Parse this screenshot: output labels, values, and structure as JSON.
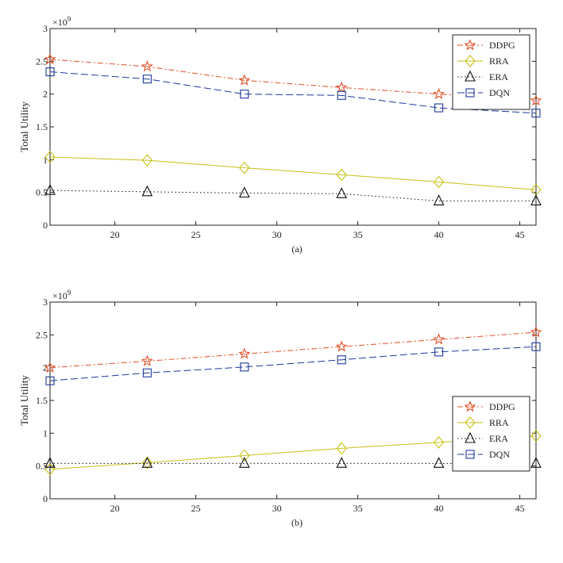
{
  "chart_data": [
    {
      "type": "line",
      "caption": "(a)",
      "ylabel": "Total Utility",
      "y_multiplier": "×10",
      "y_exponent": "9",
      "xlim": [
        16,
        46
      ],
      "ylim": [
        0,
        3
      ],
      "xticks": [
        20,
        25,
        30,
        35,
        40,
        45
      ],
      "yticks": [
        "0",
        "0.5",
        "1",
        "1.5",
        "2",
        "2.5",
        "3"
      ],
      "legend_position": "top-right",
      "x": [
        16,
        22,
        28,
        34,
        40,
        46
      ],
      "series": [
        {
          "name": "DDPG",
          "color": "#e0502a",
          "dash": "dashdot",
          "marker": "star",
          "values": [
            2.53,
            2.42,
            2.21,
            2.1,
            2.0,
            1.9
          ]
        },
        {
          "name": "RRA",
          "color": "#c8c21a",
          "dash": "solid",
          "marker": "diamond",
          "values": [
            1.04,
            0.99,
            0.875,
            0.77,
            0.66,
            0.54
          ]
        },
        {
          "name": "ERA",
          "color": "#111111",
          "dash": "dotted",
          "marker": "triangle",
          "values": [
            0.53,
            0.51,
            0.49,
            0.48,
            0.37,
            0.37
          ]
        },
        {
          "name": "DQN",
          "color": "#1f3a9a",
          "dash": "dashed",
          "marker": "square",
          "values": [
            2.34,
            2.23,
            2.0,
            1.98,
            1.79,
            1.71
          ]
        }
      ]
    },
    {
      "type": "line",
      "caption": "(b)",
      "ylabel": "Total Utility",
      "y_multiplier": "×10",
      "y_exponent": "9",
      "xlim": [
        16,
        46
      ],
      "ylim": [
        0,
        3
      ],
      "xticks": [
        20,
        25,
        30,
        35,
        40,
        45
      ],
      "yticks": [
        "0",
        "0.5",
        "1",
        "1.5",
        "2",
        "2.5",
        "3"
      ],
      "legend_position": "center-right",
      "x": [
        16,
        22,
        28,
        34,
        40,
        46
      ],
      "series": [
        {
          "name": "DDPG",
          "color": "#e0502a",
          "dash": "dashdot",
          "marker": "star",
          "values": [
            2.0,
            2.1,
            2.21,
            2.32,
            2.43,
            2.54
          ]
        },
        {
          "name": "RRA",
          "color": "#c8c21a",
          "dash": "solid",
          "marker": "diamond",
          "values": [
            0.45,
            0.55,
            0.66,
            0.77,
            0.86,
            0.96
          ]
        },
        {
          "name": "ERA",
          "color": "#111111",
          "dash": "dotted",
          "marker": "triangle",
          "values": [
            0.54,
            0.54,
            0.54,
            0.54,
            0.54,
            0.54
          ]
        },
        {
          "name": "DQN",
          "color": "#1f3a9a",
          "dash": "dashed",
          "marker": "square",
          "values": [
            1.8,
            1.92,
            2.01,
            2.12,
            2.24,
            2.32
          ]
        }
      ]
    }
  ]
}
